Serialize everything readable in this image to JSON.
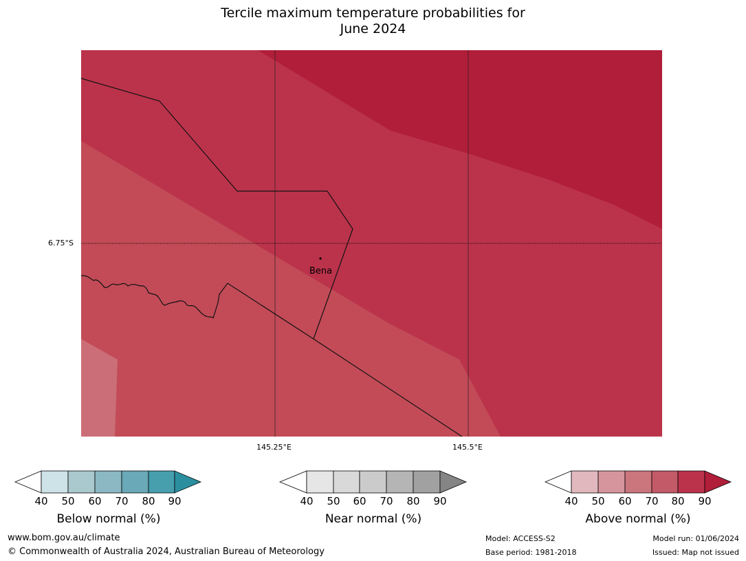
{
  "title": {
    "line1": "Tercile maximum temperature probabilities for",
    "line2": "June 2024"
  },
  "map": {
    "latitude_label": "6.75°S",
    "longitude_labels": [
      "145.25°E",
      "145.5°E"
    ],
    "place": "Bena",
    "colors": {
      "above_90": "#b01e3a",
      "above_80": "#bb334b",
      "above_70": "#c24b57",
      "above_60": "#cb6e78",
      "gridline": "#000000"
    }
  },
  "colorbars": [
    {
      "title": "Below normal (%)",
      "ticks": [
        "40",
        "50",
        "60",
        "70",
        "80",
        "90"
      ],
      "colors": [
        "#ffffff",
        "#cde3e8",
        "#a9c9cf",
        "#8bb8c3",
        "#6aa9b7",
        "#479fae",
        "#2b8f9f"
      ]
    },
    {
      "title": "Near normal (%)",
      "ticks": [
        "40",
        "50",
        "60",
        "70",
        "80",
        "90"
      ],
      "colors": [
        "#ffffff",
        "#e6e6e6",
        "#d9d9d9",
        "#cbcbcb",
        "#b5b5b5",
        "#a1a1a1",
        "#858585"
      ]
    },
    {
      "title": "Above normal (%)",
      "ticks": [
        "40",
        "50",
        "60",
        "70",
        "80",
        "90"
      ],
      "colors": [
        "#ffffff",
        "#e1b8bd",
        "#d6959c",
        "#cb757d",
        "#c35a67",
        "#bb334b",
        "#b01e3a"
      ]
    }
  ],
  "footer": {
    "url": "www.bom.gov.au/climate",
    "copyright": "© Commonwealth of Australia 2024, Australian Bureau of Meteorology",
    "model": "Model: ACCESS-S2",
    "base_period": "Base period: 1981-2018",
    "model_run": "Model run: 01/06/2024",
    "issued": "Issued: Map not issued"
  }
}
